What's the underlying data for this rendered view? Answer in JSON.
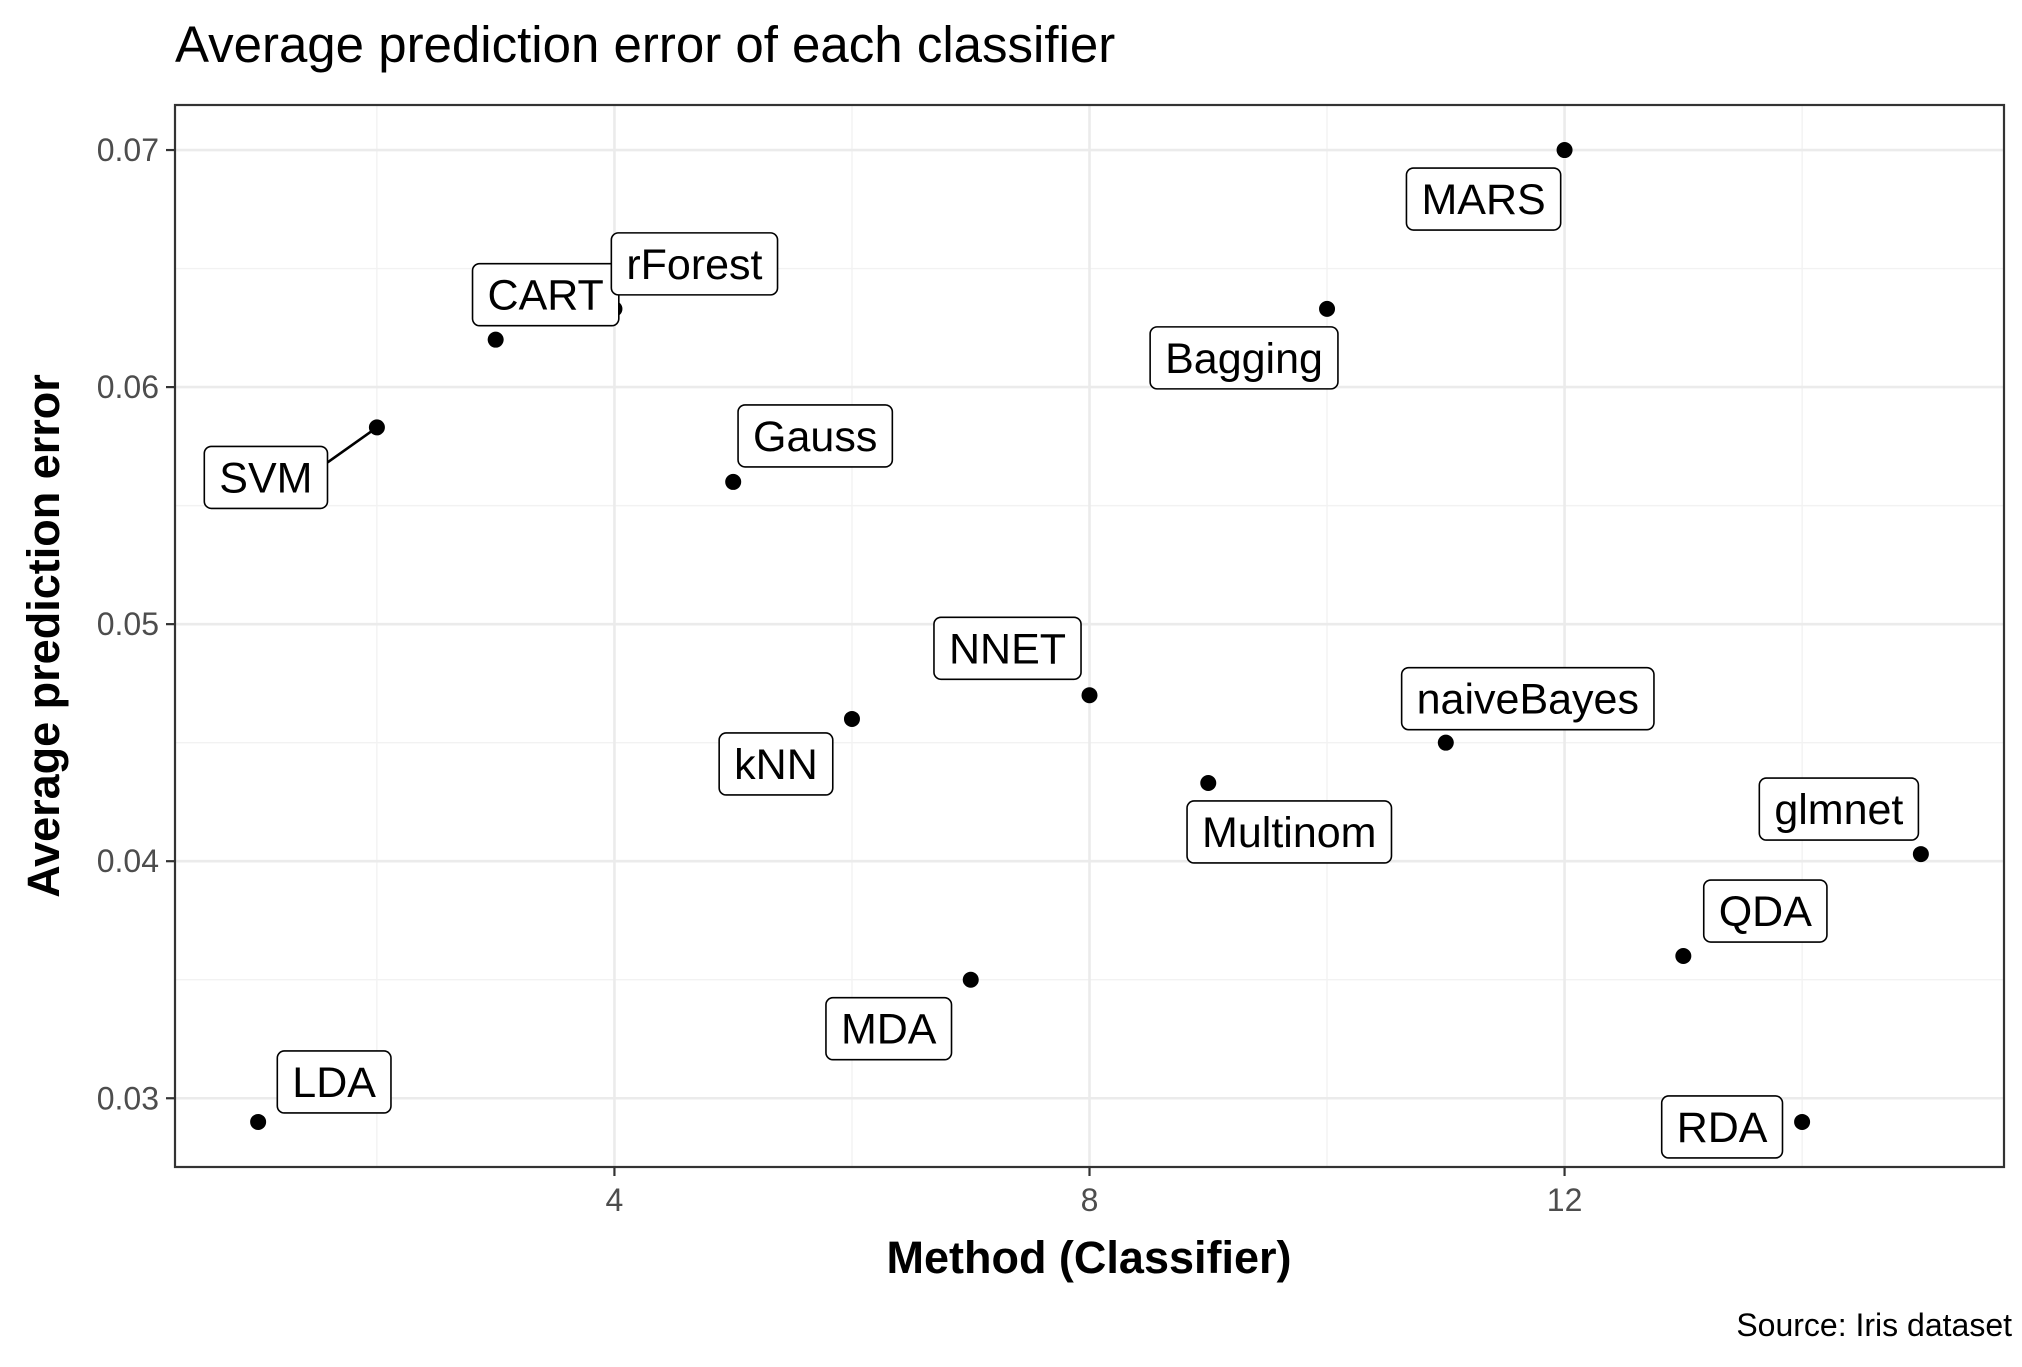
{
  "chart_data": {
    "type": "scatter",
    "title": "Average prediction error of each classifier",
    "xlabel": "Method (Classifier)",
    "ylabel": "Average prediction error",
    "caption": "Source: Iris dataset",
    "xlim": [
      0.3,
      15.7
    ],
    "ylim": [
      0.0271,
      0.0719
    ],
    "xticks": [
      4,
      8,
      12
    ],
    "xtick_labels": [
      "4",
      "8",
      "12"
    ],
    "yticks": [
      0.03,
      0.04,
      0.05,
      0.06,
      0.07
    ],
    "ytick_labels": [
      "0.03",
      "0.04",
      "0.05",
      "0.06",
      "0.07"
    ],
    "grid": true,
    "legend": "none",
    "point_color": "#000000",
    "points": [
      {
        "label": "LDA",
        "x": 1,
        "y": 0.029
      },
      {
        "label": "SVM",
        "x": 2,
        "y": 0.0583
      },
      {
        "label": "CART",
        "x": 3,
        "y": 0.062
      },
      {
        "label": "rForest",
        "x": 4,
        "y": 0.0633
      },
      {
        "label": "Gauss",
        "x": 5,
        "y": 0.056
      },
      {
        "label": "kNN",
        "x": 6,
        "y": 0.046
      },
      {
        "label": "MDA",
        "x": 7,
        "y": 0.035
      },
      {
        "label": "NNET",
        "x": 8,
        "y": 0.047
      },
      {
        "label": "Multinom",
        "x": 9,
        "y": 0.0433
      },
      {
        "label": "Bagging",
        "x": 10,
        "y": 0.0633
      },
      {
        "label": "naiveBayes",
        "x": 11,
        "y": 0.045
      },
      {
        "label": "MARS",
        "x": 12,
        "y": 0.07
      },
      {
        "label": "QDA",
        "x": 13,
        "y": 0.036
      },
      {
        "label": "RDA",
        "x": 14,
        "y": 0.029
      },
      {
        "label": "glmnet",
        "x": 15,
        "y": 0.0403
      }
    ]
  }
}
